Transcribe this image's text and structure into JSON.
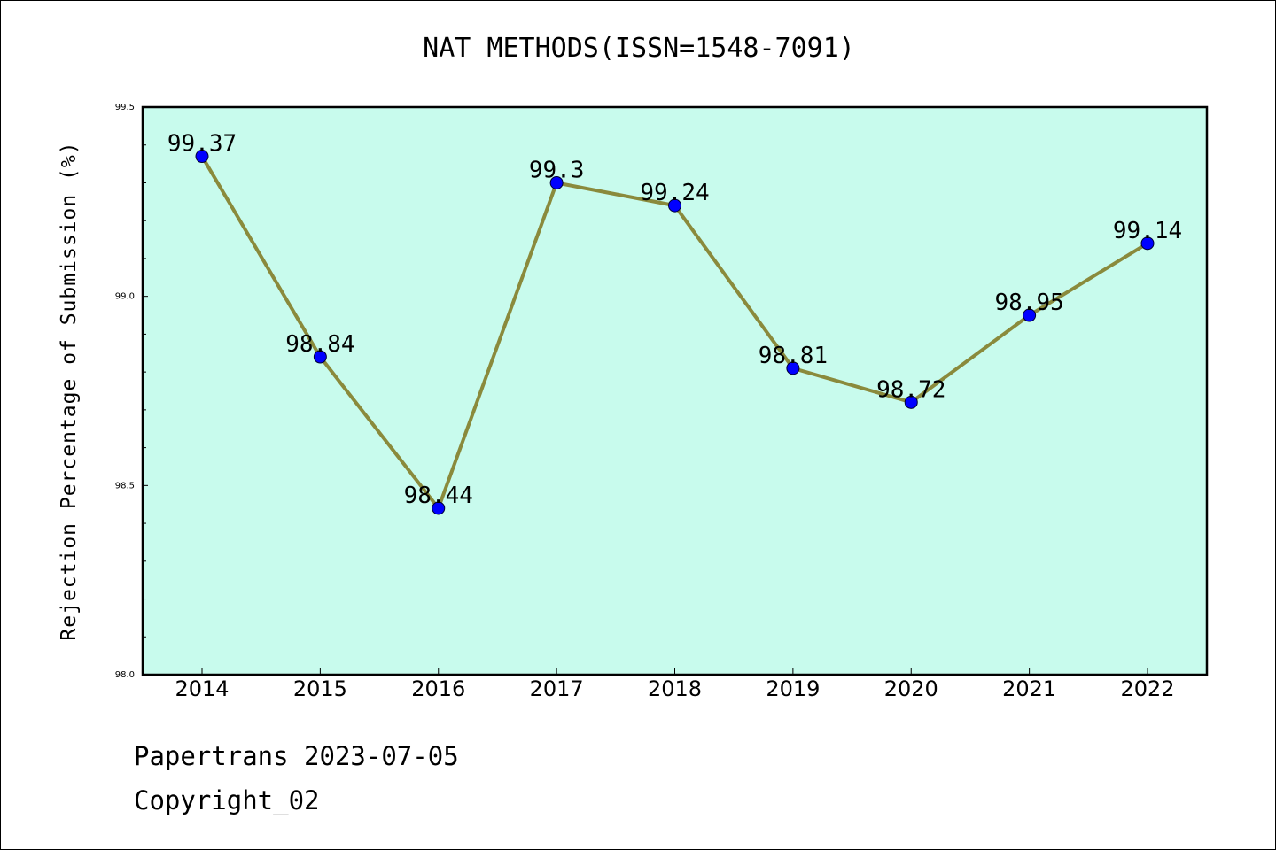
{
  "chart_data": {
    "type": "line",
    "title": "NAT METHODS(ISSN=1548-7091)",
    "xlabel": "",
    "ylabel": "Rejection Percentage of Submission (%)",
    "x": [
      "2014",
      "2015",
      "2016",
      "2017",
      "2018",
      "2019",
      "2020",
      "2021",
      "2022"
    ],
    "values": [
      99.37,
      98.84,
      98.44,
      99.3,
      99.24,
      98.81,
      98.72,
      98.95,
      99.14
    ],
    "data_labels": [
      "99.37",
      "98.84",
      "98.44",
      "99.3",
      "99.24",
      "98.81",
      "98.72",
      "98.95",
      "99.14"
    ],
    "ylim": [
      98.0,
      99.5
    ],
    "yticks": [
      "98.0",
      "98.5",
      "99.0",
      "99.5"
    ],
    "grid": false,
    "line_color": "#8a8a3c",
    "marker_color": "#0000ff",
    "plot_background": "#c8fbed"
  },
  "footer": {
    "date_line": "Papertrans 2023-07-05",
    "copyright_line": "Copyright_02"
  }
}
